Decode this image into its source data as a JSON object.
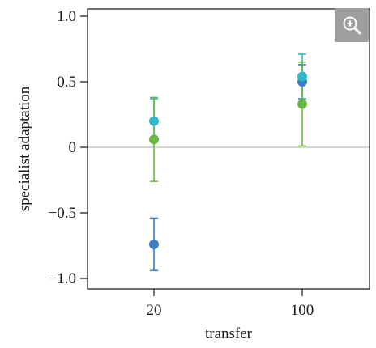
{
  "chart_data": {
    "type": "scatter",
    "xlabel": "transfer",
    "ylabel": "specialist adaptation",
    "categories": [
      "20",
      "100"
    ],
    "ylim": [
      -1.05,
      1.05
    ],
    "yticks": [
      1.0,
      0.5,
      0,
      -0.5,
      -1.0
    ],
    "ytick_labels": [
      "1.0",
      "0.5",
      "0",
      "−0.5",
      "−1.0"
    ],
    "reference_line": 0,
    "grid": false,
    "series": [
      {
        "color": "#3a7fc1",
        "values": [
          -0.74,
          0.5
        ],
        "err_low": [
          -0.94,
          0.37
        ],
        "err_high": [
          -0.54,
          0.63
        ]
      },
      {
        "color": "#30b8c8",
        "values": [
          0.2,
          0.54
        ],
        "err_low": [
          0.04,
          0.37
        ],
        "err_high": [
          0.37,
          0.71
        ]
      },
      {
        "color": "#6ab844",
        "values": [
          0.06,
          0.33
        ],
        "err_low": [
          -0.26,
          0.01
        ],
        "err_high": [
          0.38,
          0.65
        ]
      }
    ]
  },
  "toolbar": {
    "zoom_icon": "zoom-in-icon"
  }
}
